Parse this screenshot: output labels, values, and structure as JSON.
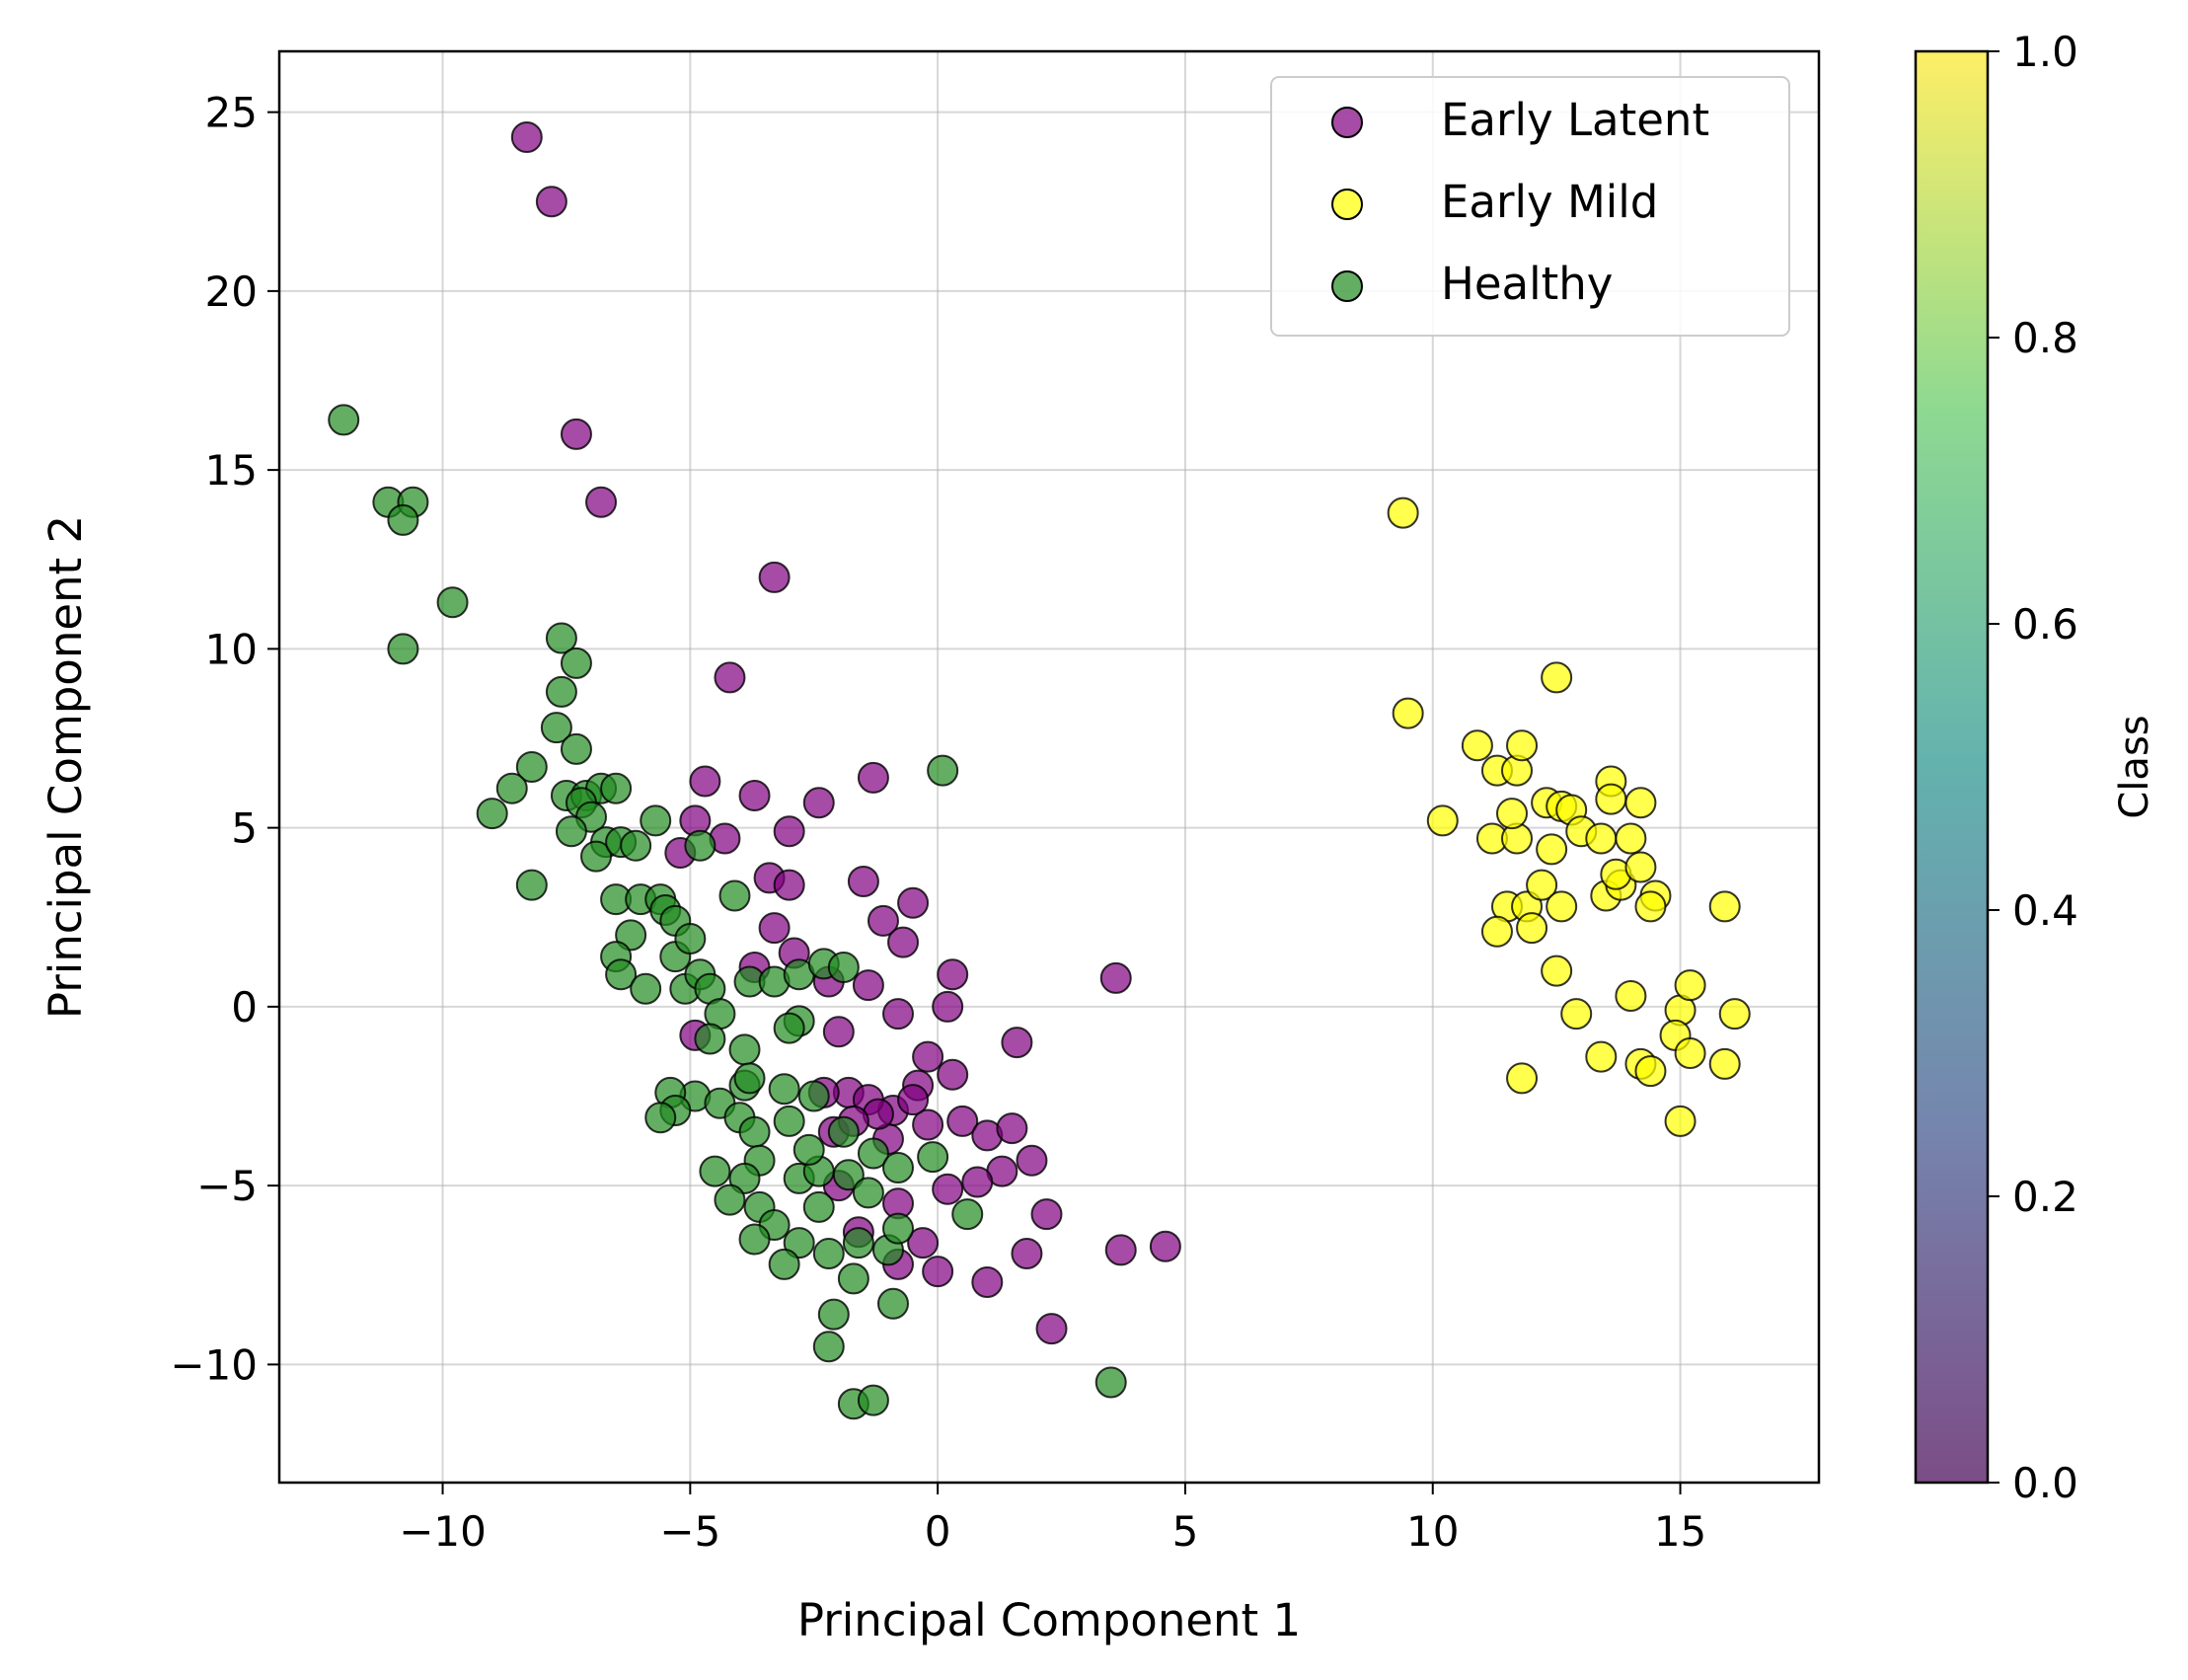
{
  "chart_data": {
    "type": "scatter",
    "xlabel": "Principal Component 1",
    "ylabel": "Principal Component 2",
    "xlim": [
      -13.3,
      17.8
    ],
    "ylim": [
      -13.3,
      26.7
    ],
    "xticks": [
      -10,
      -5,
      0,
      5,
      10,
      15
    ],
    "yticks": [
      -10,
      -5,
      0,
      5,
      10,
      15,
      20,
      25
    ],
    "xtick_labels": [
      "−10",
      "−5",
      "0",
      "5",
      "10",
      "15"
    ],
    "ytick_labels": [
      "−10",
      "−5",
      "0",
      "5",
      "10",
      "15",
      "20",
      "25"
    ],
    "grid": true,
    "legend_position": "top-right",
    "series": [
      {
        "name": "Early Latent",
        "color": "#800080",
        "points": [
          [
            -8.3,
            24.3
          ],
          [
            -7.8,
            22.5
          ],
          [
            -7.3,
            16.0
          ],
          [
            -6.8,
            14.1
          ],
          [
            -3.3,
            12.0
          ],
          [
            -4.2,
            9.2
          ],
          [
            -4.7,
            6.3
          ],
          [
            -3.7,
            5.9
          ],
          [
            -2.4,
            5.7
          ],
          [
            -1.3,
            6.4
          ],
          [
            -4.9,
            5.2
          ],
          [
            -3.0,
            4.9
          ],
          [
            -5.2,
            4.3
          ],
          [
            -4.3,
            4.7
          ],
          [
            -3.4,
            3.6
          ],
          [
            -3.0,
            3.4
          ],
          [
            -1.5,
            3.5
          ],
          [
            -0.5,
            2.9
          ],
          [
            -1.1,
            2.4
          ],
          [
            -0.7,
            1.8
          ],
          [
            -3.3,
            2.2
          ],
          [
            -2.9,
            1.5
          ],
          [
            -3.7,
            1.1
          ],
          [
            -2.2,
            0.7
          ],
          [
            -1.4,
            0.6
          ],
          [
            -0.8,
            -0.2
          ],
          [
            0.3,
            0.9
          ],
          [
            0.2,
            0.0
          ],
          [
            3.6,
            0.8
          ],
          [
            1.6,
            -1.0
          ],
          [
            -4.9,
            -0.8
          ],
          [
            -2.0,
            -0.7
          ],
          [
            -0.2,
            -1.4
          ],
          [
            0.3,
            -1.9
          ],
          [
            -0.4,
            -2.2
          ],
          [
            -0.9,
            -2.9
          ],
          [
            -1.8,
            -2.4
          ],
          [
            -2.3,
            -2.4
          ],
          [
            -1.4,
            -2.6
          ],
          [
            -2.1,
            -3.5
          ],
          [
            -1.0,
            -3.7
          ],
          [
            -0.2,
            -3.3
          ],
          [
            0.5,
            -3.2
          ],
          [
            1.0,
            -3.6
          ],
          [
            1.5,
            -3.4
          ],
          [
            1.9,
            -4.3
          ],
          [
            1.3,
            -4.6
          ],
          [
            0.2,
            -5.1
          ],
          [
            -0.8,
            -5.5
          ],
          [
            -2.0,
            -5.0
          ],
          [
            -1.6,
            -6.3
          ],
          [
            -0.3,
            -6.6
          ],
          [
            -0.8,
            -7.2
          ],
          [
            0.0,
            -7.4
          ],
          [
            1.0,
            -7.7
          ],
          [
            1.8,
            -6.9
          ],
          [
            2.2,
            -5.8
          ],
          [
            2.3,
            -9.0
          ],
          [
            3.7,
            -6.8
          ],
          [
            4.6,
            -6.7
          ],
          [
            -1.2,
            -3.0
          ],
          [
            -1.7,
            -3.2
          ],
          [
            -0.5,
            -2.6
          ],
          [
            0.8,
            -4.9
          ]
        ]
      },
      {
        "name": "Early Mild",
        "color": "#FFFF00",
        "points": [
          [
            9.4,
            13.8
          ],
          [
            9.5,
            8.2
          ],
          [
            12.5,
            9.2
          ],
          [
            10.2,
            5.2
          ],
          [
            10.9,
            7.3
          ],
          [
            11.3,
            6.6
          ],
          [
            11.7,
            6.6
          ],
          [
            11.8,
            7.3
          ],
          [
            11.2,
            4.7
          ],
          [
            11.7,
            4.7
          ],
          [
            11.5,
            2.8
          ],
          [
            11.3,
            2.1
          ],
          [
            11.9,
            2.8
          ],
          [
            12.2,
            3.4
          ],
          [
            12.0,
            2.2
          ],
          [
            12.6,
            2.8
          ],
          [
            12.3,
            5.7
          ],
          [
            12.6,
            5.6
          ],
          [
            12.8,
            5.5
          ],
          [
            12.4,
            4.4
          ],
          [
            13.0,
            4.9
          ],
          [
            13.6,
            6.3
          ],
          [
            13.6,
            5.8
          ],
          [
            14.2,
            5.7
          ],
          [
            13.4,
            4.7
          ],
          [
            14.0,
            4.7
          ],
          [
            13.5,
            3.1
          ],
          [
            13.8,
            3.4
          ],
          [
            13.7,
            3.7
          ],
          [
            14.2,
            3.9
          ],
          [
            14.5,
            3.1
          ],
          [
            14.4,
            2.8
          ],
          [
            12.5,
            1.0
          ],
          [
            12.9,
            -0.2
          ],
          [
            13.4,
            -1.4
          ],
          [
            14.0,
            0.3
          ],
          [
            14.2,
            -1.6
          ],
          [
            14.4,
            -1.8
          ],
          [
            15.0,
            -0.1
          ],
          [
            15.2,
            0.6
          ],
          [
            14.9,
            -0.8
          ],
          [
            15.2,
            -1.3
          ],
          [
            15.0,
            -3.2
          ],
          [
            15.9,
            -1.6
          ],
          [
            16.1,
            -0.2
          ],
          [
            15.9,
            2.8
          ],
          [
            11.8,
            -2.0
          ],
          [
            11.6,
            5.4
          ]
        ]
      },
      {
        "name": "Healthy",
        "color": "#228B22",
        "points": [
          [
            -12.0,
            16.4
          ],
          [
            -11.1,
            14.1
          ],
          [
            -10.6,
            14.1
          ],
          [
            -10.8,
            13.6
          ],
          [
            -10.8,
            10.0
          ],
          [
            -9.8,
            11.3
          ],
          [
            -7.6,
            10.3
          ],
          [
            -7.3,
            9.6
          ],
          [
            -7.6,
            8.8
          ],
          [
            -7.7,
            7.8
          ],
          [
            -7.3,
            7.2
          ],
          [
            -8.2,
            6.7
          ],
          [
            -8.6,
            6.1
          ],
          [
            -9.0,
            5.4
          ],
          [
            -7.5,
            5.9
          ],
          [
            -7.1,
            5.9
          ],
          [
            -6.8,
            6.1
          ],
          [
            -6.5,
            6.1
          ],
          [
            -7.2,
            5.7
          ],
          [
            -7.0,
            5.3
          ],
          [
            -7.4,
            4.9
          ],
          [
            -6.7,
            4.6
          ],
          [
            -6.9,
            4.2
          ],
          [
            -6.4,
            4.6
          ],
          [
            -6.1,
            4.5
          ],
          [
            -5.7,
            5.2
          ],
          [
            -4.8,
            4.5
          ],
          [
            -8.2,
            3.4
          ],
          [
            -6.5,
            3.0
          ],
          [
            -6.0,
            3.0
          ],
          [
            -5.6,
            3.0
          ],
          [
            -5.5,
            2.7
          ],
          [
            -5.3,
            2.4
          ],
          [
            -6.2,
            2.0
          ],
          [
            -6.5,
            1.4
          ],
          [
            -6.4,
            0.9
          ],
          [
            -5.9,
            0.5
          ],
          [
            -5.3,
            1.4
          ],
          [
            -5.0,
            1.9
          ],
          [
            -5.1,
            0.5
          ],
          [
            -4.8,
            0.9
          ],
          [
            -4.6,
            0.5
          ],
          [
            -4.4,
            -0.2
          ],
          [
            -4.6,
            -0.9
          ],
          [
            -3.9,
            -1.2
          ],
          [
            -4.1,
            3.1
          ],
          [
            -3.8,
            0.7
          ],
          [
            -3.3,
            0.7
          ],
          [
            -2.8,
            0.9
          ],
          [
            -2.3,
            1.2
          ],
          [
            -1.9,
            1.1
          ],
          [
            -2.8,
            -0.4
          ],
          [
            -3.0,
            -0.6
          ],
          [
            -4.9,
            -2.5
          ],
          [
            -5.4,
            -2.4
          ],
          [
            -5.3,
            -2.9
          ],
          [
            -5.6,
            -3.1
          ],
          [
            -4.4,
            -2.7
          ],
          [
            -3.9,
            -2.2
          ],
          [
            -3.8,
            -2.0
          ],
          [
            -4.0,
            -3.1
          ],
          [
            -3.7,
            -3.5
          ],
          [
            -3.1,
            -2.3
          ],
          [
            -2.5,
            -2.5
          ],
          [
            -3.0,
            -3.2
          ],
          [
            -4.5,
            -4.6
          ],
          [
            -3.6,
            -4.3
          ],
          [
            -3.9,
            -4.8
          ],
          [
            -2.8,
            -4.8
          ],
          [
            -2.4,
            -4.6
          ],
          [
            -1.8,
            -4.7
          ],
          [
            -1.3,
            -4.1
          ],
          [
            -0.8,
            -4.5
          ],
          [
            -0.1,
            -4.2
          ],
          [
            -4.2,
            -5.4
          ],
          [
            -3.6,
            -5.6
          ],
          [
            -3.3,
            -6.1
          ],
          [
            -2.8,
            -6.6
          ],
          [
            -2.2,
            -6.9
          ],
          [
            -1.6,
            -6.6
          ],
          [
            -1.0,
            -6.8
          ],
          [
            -0.8,
            -6.2
          ],
          [
            0.6,
            -5.8
          ],
          [
            -3.1,
            -7.2
          ],
          [
            -1.7,
            -7.6
          ],
          [
            -0.9,
            -8.3
          ],
          [
            -2.1,
            -8.6
          ],
          [
            -2.2,
            -9.5
          ],
          [
            -1.7,
            -11.1
          ],
          [
            -1.3,
            -11.0
          ],
          [
            3.5,
            -10.5
          ],
          [
            0.1,
            6.6
          ],
          [
            -1.9,
            -3.5
          ],
          [
            -2.4,
            -5.6
          ],
          [
            -1.4,
            -5.2
          ],
          [
            -3.7,
            -6.5
          ],
          [
            -2.6,
            -4.0
          ]
        ]
      }
    ],
    "colorbar": {
      "label": "Class",
      "range": [
        0.0,
        1.0
      ],
      "ticks": [
        0.0,
        0.2,
        0.4,
        0.6,
        0.8,
        1.0
      ],
      "tick_labels": [
        "0.0",
        "0.2",
        "0.4",
        "0.6",
        "0.8",
        "1.0"
      ],
      "colors": [
        "#440154",
        "#3B528B",
        "#21918C",
        "#5EC962",
        "#FDE725"
      ]
    }
  }
}
